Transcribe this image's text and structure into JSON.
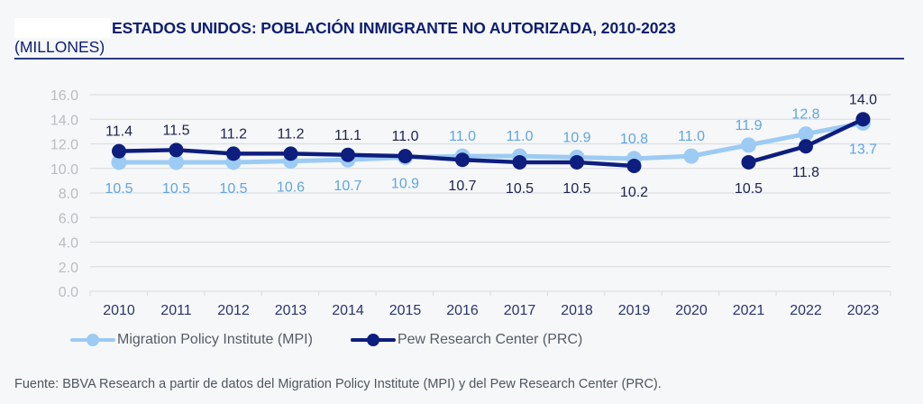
{
  "header": {
    "title": "ESTADOS UNIDOS: POBLACIÓN INMIGRANTE NO AUTORIZADA, 2010-2023",
    "subtitle": "(MILLONES)"
  },
  "colors": {
    "mpi": "#9ccbf3",
    "mpi_label": "#5fa6e0",
    "prc": "#0d1e7e",
    "prc_label": "#1b2252",
    "axis_tick": "#b9bcc2",
    "category_label": "#2c3470",
    "grid": "#dcdfe3"
  },
  "chart_data": {
    "type": "line",
    "title": "ESTADOS UNIDOS: POBLACIÓN INMIGRANTE NO AUTORIZADA, 2010-2023",
    "ylabel": "(MILLONES)",
    "xlabel": "",
    "categories": [
      "2010",
      "2011",
      "2012",
      "2013",
      "2014",
      "2015",
      "2016",
      "2017",
      "2018",
      "2019",
      "2020",
      "2021",
      "2022",
      "2023"
    ],
    "ylim": [
      0,
      16
    ],
    "yticks": [
      "0.0",
      "2.0",
      "4.0",
      "6.0",
      "8.0",
      "10.0",
      "12.0",
      "14.0",
      "16.0"
    ],
    "grid": true,
    "legend_position": "bottom-left",
    "series": [
      {
        "name": "Migration Policy Institute (MPI)",
        "key": "mpi",
        "values": [
          10.5,
          10.5,
          10.5,
          10.6,
          10.7,
          10.9,
          11.0,
          11.0,
          10.9,
          10.8,
          11.0,
          11.9,
          12.8,
          13.7
        ],
        "label_position": [
          "below",
          "below",
          "below",
          "below",
          "below",
          "below",
          "above",
          "above",
          "above",
          "above",
          "above",
          "above",
          "above",
          "below"
        ]
      },
      {
        "name": "Pew Research Center (PRC)",
        "key": "prc",
        "values": [
          11.4,
          11.5,
          11.2,
          11.2,
          11.1,
          11.0,
          10.7,
          10.5,
          10.5,
          10.2,
          null,
          10.5,
          11.8,
          14.0
        ],
        "label_position": [
          "above",
          "above",
          "above",
          "above",
          "above",
          "above",
          "below",
          "below",
          "below",
          "below",
          null,
          "below",
          "below",
          "above"
        ]
      }
    ]
  },
  "legend": {
    "items": [
      {
        "label": "Migration Policy Institute (MPI)"
      },
      {
        "label": "Pew Research Center (PRC)"
      }
    ]
  },
  "footer": {
    "source": "Fuente: BBVA Research a partir de datos del Migration Policy Institute (MPI) y del Pew Research Center (PRC)."
  }
}
